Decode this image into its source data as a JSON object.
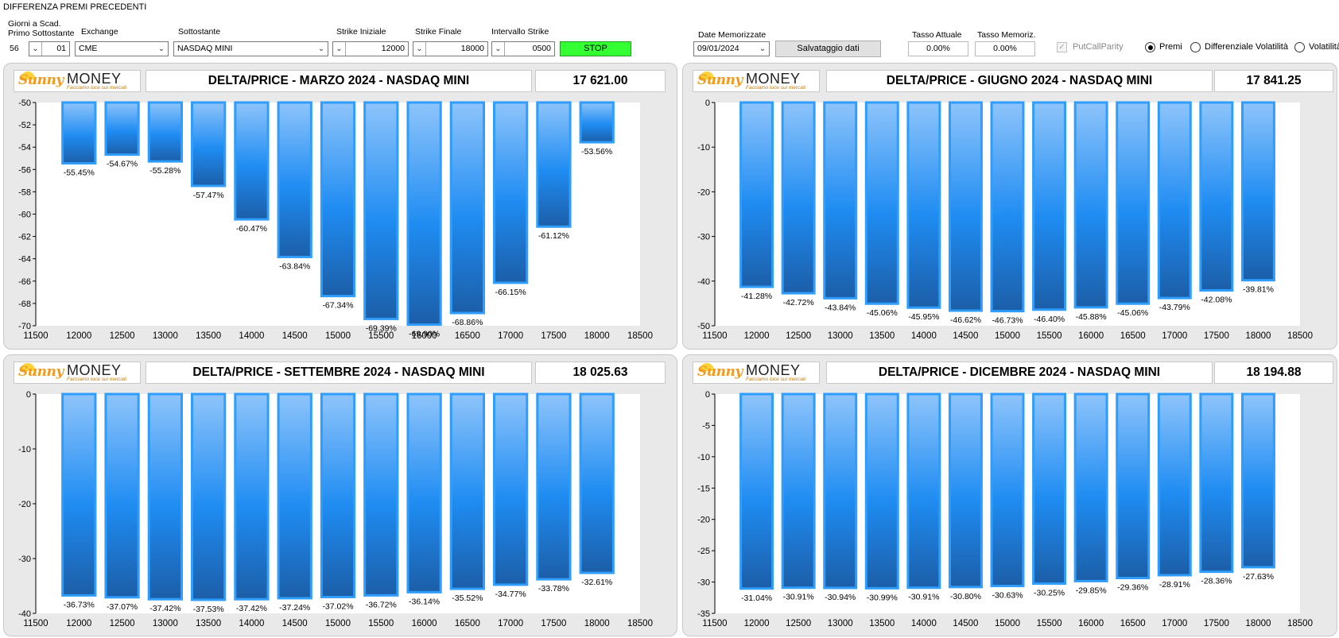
{
  "window_title": "DIFFERENZA PREMI PRECEDENTI",
  "controls": {
    "giorni_label": "Giorni a Scad.\nPrimo Sottostante",
    "giorni_value": "56",
    "giorni_spin": "01",
    "exchange_label": "Exchange",
    "exchange_value": "CME",
    "sottostante_label": "Sottostante",
    "sottostante_value": "NASDAQ MINI",
    "strike_iniziale_label": "Strike Iniziale",
    "strike_iniziale_value": "12000",
    "strike_finale_label": "Strike Finale",
    "strike_finale_value": "18000",
    "intervallo_label": "Intervallo Strike",
    "intervallo_value": "0500",
    "stop_label": "STOP",
    "date_label": "Date Memorizzate",
    "date_value": "09/01/2024",
    "save_label": "Salvataggio dati",
    "tasso_attuale_label": "Tasso Attuale",
    "tasso_attuale_value": "0.00%",
    "tasso_memoriz_label": "Tasso Memoriz.",
    "tasso_memoriz_value": "0.00%",
    "putcall_label": "PutCallParity",
    "putcall_checked": true,
    "radio_premi": "Premi",
    "radio_diff_vol": "Differenziale Volatilità",
    "radio_volatilita": "Volatilità",
    "radio_selected": "Premi"
  },
  "logo": {
    "sunny": "Sunny",
    "money": "MONEY",
    "tagline": "Facciamo luce sui mercati"
  },
  "colors": {
    "bar_light": "#8ec4fb",
    "bar_mid": "#1f8cf2",
    "bar_dark": "#1c5ea8",
    "bar_border": "#2f9dfc",
    "panel_bg": "#e9e9e9",
    "stop_green": "#33ff33"
  },
  "panels": [
    {
      "title": "DELTA/PRICE - MARZO 2024 - NASDAQ MINI",
      "price": "17 621.00"
    },
    {
      "title": "DELTA/PRICE - GIUGNO 2024 - NASDAQ MINI",
      "price": "17 841.25"
    },
    {
      "title": "DELTA/PRICE - SETTEMBRE 2024 - NASDAQ MINI",
      "price": "18 025.63"
    },
    {
      "title": "DELTA/PRICE - DICEMBRE 2024 - NASDAQ MINI",
      "price": "18 194.88"
    }
  ],
  "chart_data": [
    {
      "type": "bar",
      "title": "DELTA/PRICE - MARZO 2024 - NASDAQ MINI",
      "categories": [
        12000,
        12500,
        13000,
        13500,
        14000,
        14500,
        15000,
        15500,
        16000,
        16500,
        17000,
        17500,
        18000
      ],
      "values": [
        -55.45,
        -54.67,
        -55.28,
        -57.47,
        -60.47,
        -63.84,
        -67.34,
        -69.39,
        -69.9,
        -68.86,
        -66.15,
        -61.12,
        -53.56
      ],
      "labels": [
        "-55.45%",
        "-54.67%",
        "-55.28%",
        "-57.47%",
        "-60.47%",
        "-63.84%",
        "-67.34%",
        "-69.39%",
        "-69.90%",
        "-68.86%",
        "-66.15%",
        "-61.12%",
        "-53.56%"
      ],
      "xlim": [
        11500,
        18500
      ],
      "xticks": [
        11500,
        12000,
        12500,
        13000,
        13500,
        14000,
        14500,
        15000,
        15500,
        16000,
        16500,
        17000,
        17500,
        18000,
        18500
      ],
      "ylim": [
        -70,
        -50
      ],
      "yticks": [
        -50,
        -52,
        -54,
        -56,
        -58,
        -60,
        -62,
        -64,
        -66,
        -68,
        -70
      ],
      "grid": false,
      "legend": "none"
    },
    {
      "type": "bar",
      "title": "DELTA/PRICE - GIUGNO 2024 - NASDAQ MINI",
      "categories": [
        12000,
        12500,
        13000,
        13500,
        14000,
        14500,
        15000,
        15500,
        16000,
        16500,
        17000,
        17500,
        18000
      ],
      "values": [
        -41.28,
        -42.72,
        -43.84,
        -45.06,
        -45.95,
        -46.62,
        -46.73,
        -46.4,
        -45.88,
        -45.06,
        -43.79,
        -42.08,
        -39.81
      ],
      "labels": [
        "-41.28%",
        "-42.72%",
        "-43.84%",
        "-45.06%",
        "-45.95%",
        "-46.62%",
        "-46.73%",
        "-46.40%",
        "-45.88%",
        "-45.06%",
        "-43.79%",
        "-42.08%",
        "-39.81%"
      ],
      "xlim": [
        11500,
        18500
      ],
      "xticks": [
        11500,
        12000,
        12500,
        13000,
        13500,
        14000,
        14500,
        15000,
        15500,
        16000,
        16500,
        17000,
        17500,
        18000,
        18500
      ],
      "ylim": [
        -50,
        0
      ],
      "yticks": [
        0,
        -10,
        -20,
        -30,
        -40,
        -50
      ],
      "grid": false,
      "legend": "none"
    },
    {
      "type": "bar",
      "title": "DELTA/PRICE - SETTEMBRE 2024 - NASDAQ MINI",
      "categories": [
        12000,
        12500,
        13000,
        13500,
        14000,
        14500,
        15000,
        15500,
        16000,
        16500,
        17000,
        17500,
        18000
      ],
      "values": [
        -36.73,
        -37.07,
        -37.42,
        -37.53,
        -37.42,
        -37.24,
        -37.02,
        -36.72,
        -36.14,
        -35.52,
        -34.77,
        -33.78,
        -32.61
      ],
      "labels": [
        "-36.73%",
        "-37.07%",
        "-37.42%",
        "-37.53%",
        "-37.42%",
        "-37.24%",
        "-37.02%",
        "-36.72%",
        "-36.14%",
        "-35.52%",
        "-34.77%",
        "-33.78%",
        "-32.61%"
      ],
      "xlim": [
        11500,
        18500
      ],
      "xticks": [
        11500,
        12000,
        12500,
        13000,
        13500,
        14000,
        14500,
        15000,
        15500,
        16000,
        16500,
        17000,
        17500,
        18000,
        18500
      ],
      "ylim": [
        -40,
        0
      ],
      "yticks": [
        0,
        -10,
        -20,
        -30,
        -40
      ],
      "grid": false,
      "legend": "none"
    },
    {
      "type": "bar",
      "title": "DELTA/PRICE - DICEMBRE 2024 - NASDAQ MINI",
      "categories": [
        12000,
        12500,
        13000,
        13500,
        14000,
        14500,
        15000,
        15500,
        16000,
        16500,
        17000,
        17500,
        18000
      ],
      "values": [
        -31.04,
        -30.91,
        -30.94,
        -30.99,
        -30.91,
        -30.8,
        -30.63,
        -30.25,
        -29.85,
        -29.36,
        -28.91,
        -28.36,
        -27.63
      ],
      "labels": [
        "-31.04%",
        "-30.91%",
        "-30.94%",
        "-30.99%",
        "-30.91%",
        "-30.80%",
        "-30.63%",
        "-30.25%",
        "-29.85%",
        "-29.36%",
        "-28.91%",
        "-28.36%",
        "-27.63%"
      ],
      "xlim": [
        11500,
        18500
      ],
      "xticks": [
        11500,
        12000,
        12500,
        13000,
        13500,
        14000,
        14500,
        15000,
        15500,
        16000,
        16500,
        17000,
        17500,
        18000,
        18500
      ],
      "ylim": [
        -35,
        0
      ],
      "yticks": [
        0,
        -5,
        -10,
        -15,
        -20,
        -25,
        -30,
        -35
      ],
      "grid": false,
      "legend": "none"
    }
  ]
}
